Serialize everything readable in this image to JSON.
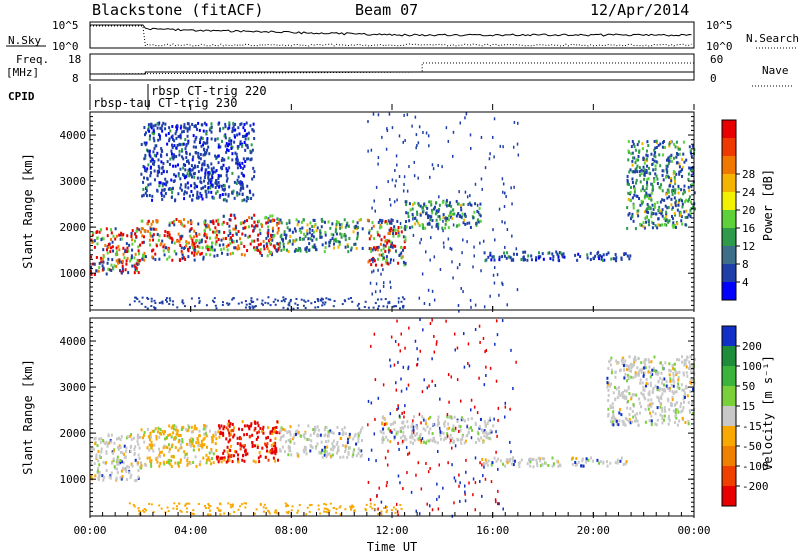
{
  "header": {
    "title": "Blackstone (fitACF)",
    "beam": "Beam 07",
    "date": "12/Apr/2014"
  },
  "top_panel": {
    "left_label": "N.Sky",
    "right_label": "N.Search",
    "left_ticks": [
      "10^5",
      "10^0"
    ],
    "right_ticks": [
      "10^5",
      "10^0"
    ]
  },
  "freq_panel": {
    "left_label_1": "Freq.",
    "left_label_2": "[MHz]",
    "right_label": "Nave",
    "left_ticks": [
      "18",
      "8"
    ],
    "right_ticks": [
      "60",
      "0"
    ]
  },
  "cpid": {
    "label": "CPID",
    "entries": [
      "rbsp-tau",
      "rbsp CT-trig 220",
      "CT-trig 230"
    ]
  },
  "x_axis": {
    "label": "Time UT",
    "ticks": [
      "00:00",
      "04:00",
      "08:00",
      "12:00",
      "16:00",
      "20:00",
      "00:00"
    ]
  },
  "chart_data": [
    {
      "type": "heatmap",
      "panel": "power",
      "xlabel": "",
      "ylabel": "Slant Range [km]",
      "x_range_hours": [
        0,
        24
      ],
      "ylim": [
        200,
        4500
      ],
      "yticks": [
        "1000",
        "2000",
        "3000",
        "4000"
      ],
      "colorbar": {
        "label": "Power [dB]",
        "ticks": [
          "4",
          "8",
          "12",
          "16",
          "20",
          "24",
          "28"
        ],
        "colors": [
          "#0000ff",
          "#1e3fa8",
          "#3d6f8a",
          "#2e9a4a",
          "#5ed13a",
          "#f2f200",
          "#f5b400",
          "#f07800",
          "#ee3a00",
          "#e80000"
        ]
      },
      "echo_regions": [
        {
          "t": [
            0.0,
            2.0
          ],
          "range": [
            1000,
            2000
          ],
          "level": "high"
        },
        {
          "t": [
            2.0,
            5.0
          ],
          "range": [
            1300,
            2200
          ],
          "level": "high"
        },
        {
          "t": [
            5.0,
            7.5
          ],
          "range": [
            1400,
            2300
          ],
          "level": "high"
        },
        {
          "t": [
            2.0,
            6.5
          ],
          "range": [
            2600,
            4300
          ],
          "level": "low"
        },
        {
          "t": [
            7.5,
            10.8
          ],
          "range": [
            1500,
            2200
          ],
          "level": "medium"
        },
        {
          "t": [
            11.0,
            12.5
          ],
          "range": [
            1200,
            2200
          ],
          "level": "high"
        },
        {
          "t": [
            12.5,
            15.5
          ],
          "range": [
            2000,
            2600
          ],
          "level": "medium"
        },
        {
          "t": [
            15.5,
            21.5
          ],
          "range": [
            1300,
            1500
          ],
          "level": "low"
        },
        {
          "t": [
            21.3,
            24.0
          ],
          "range": [
            2000,
            3900
          ],
          "level": "medium"
        }
      ]
    },
    {
      "type": "heatmap",
      "panel": "velocity",
      "xlabel": "Time UT",
      "ylabel": "Slant Range [km]",
      "x_range_hours": [
        0,
        24
      ],
      "ylim": [
        200,
        4500
      ],
      "yticks": [
        "1000",
        "2000",
        "3000",
        "4000"
      ],
      "colorbar": {
        "label": "Velocity [m s⁻¹]",
        "ticks": [
          "200",
          "100",
          "50",
          "15",
          "-15",
          "-50",
          "-100",
          "-200"
        ],
        "colors": [
          "#1030c8",
          "#1e8c38",
          "#3ab43a",
          "#7ad03a",
          "#c8c8c8",
          "#f8a800",
          "#f08000",
          "#f04000",
          "#e80000"
        ]
      },
      "echo_regions": [
        {
          "t": [
            0.0,
            2.0
          ],
          "range": [
            1000,
            2000
          ],
          "velocity": "-15 to 15"
        },
        {
          "t": [
            2.0,
            5.0
          ],
          "range": [
            1300,
            2200
          ],
          "velocity": "-50"
        },
        {
          "t": [
            5.0,
            7.5
          ],
          "range": [
            1400,
            2300
          ],
          "velocity": "-200"
        },
        {
          "t": [
            7.5,
            10.8
          ],
          "range": [
            1500,
            2200
          ],
          "velocity": "-15 to 15"
        },
        {
          "t": [
            11.5,
            16.0
          ],
          "range": [
            1800,
            2400
          ],
          "velocity": "-15 to 15"
        },
        {
          "t": [
            15.5,
            21.5
          ],
          "range": [
            1300,
            1500
          ],
          "velocity": "-15 to 15"
        },
        {
          "t": [
            20.5,
            24.0
          ],
          "range": [
            2200,
            3700
          ],
          "velocity": "-15 to 15"
        }
      ]
    }
  ]
}
